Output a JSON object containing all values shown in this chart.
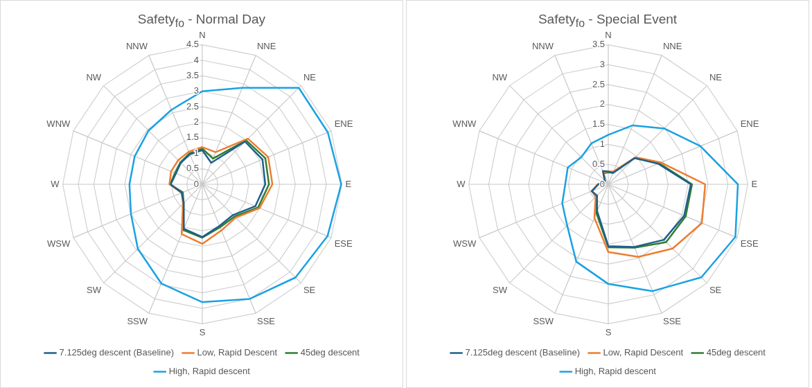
{
  "chart_data": [
    {
      "type": "radar",
      "title": "Safety$_{fo}$  - Normal Day",
      "categories": [
        "N",
        "NNE",
        "NE",
        "ENE",
        "E",
        "ESE",
        "SE",
        "SSE",
        "S",
        "SSW",
        "SW",
        "WSW",
        "W",
        "WNW",
        "NW",
        "NNW"
      ],
      "ylim": [
        0,
        4.5
      ],
      "yticks": [
        0,
        0.5,
        1,
        1.5,
        2,
        2.5,
        3,
        3.5,
        4,
        4.5
      ],
      "grid": true,
      "legend": "bottom",
      "marker": "none",
      "series": [
        {
          "name": "7.125deg descent (Baseline)",
          "color": "#1f5f8b",
          "values": [
            1.1,
            0.75,
            1.95,
            2.1,
            2.03,
            1.85,
            1.4,
            1.45,
            1.7,
            1.55,
            0.85,
            0.72,
            1.02,
            0.92,
            0.98,
            1.05
          ]
        },
        {
          "name": "Low, Rapid Descent",
          "color": "#ed7d31",
          "values": [
            1.2,
            1.12,
            2.08,
            2.3,
            2.26,
            2.0,
            1.52,
            1.61,
            1.92,
            1.74,
            0.88,
            0.72,
            1.06,
            1.09,
            1.1,
            1.14
          ]
        },
        {
          "name": "45deg descent",
          "color": "#2e7d32",
          "values": [
            1.15,
            0.9,
            2.0,
            2.2,
            2.15,
            1.95,
            1.47,
            1.5,
            1.72,
            1.6,
            0.85,
            0.68,
            1.04,
            0.95,
            1.0,
            1.08
          ]
        },
        {
          "name": "High, Rapid descent",
          "color": "#1ba1e2",
          "values": [
            3.0,
            3.37,
            4.4,
            4.38,
            4.48,
            4.37,
            4.25,
            4.0,
            3.8,
            3.46,
            2.94,
            2.49,
            2.35,
            2.36,
            2.45,
            2.6
          ]
        }
      ]
    },
    {
      "type": "radar",
      "title": "Safety$_{fo}$  - Special Event",
      "categories": [
        "N",
        "NNE",
        "NE",
        "ENE",
        "E",
        "ESE",
        "SE",
        "SSE",
        "S",
        "SSW",
        "SW",
        "WSW",
        "W",
        "WNW",
        "NW",
        "NNW"
      ],
      "ylim": [
        0,
        3.5
      ],
      "yticks": [
        0,
        0.5,
        1,
        1.5,
        2,
        2.5,
        3,
        3.5
      ],
      "grid": true,
      "legend": "bottom",
      "marker": "none",
      "series": [
        {
          "name": "7.125deg descent (Baseline)",
          "color": "#1f5f8b",
          "values": [
            0.32,
            0.31,
            0.93,
            1.35,
            2.07,
            2.06,
            1.97,
            1.7,
            1.55,
            0.73,
            0.4,
            0.45,
            0.25,
            0.12,
            0.12,
            0.36
          ]
        },
        {
          "name": "Low, Rapid Descent",
          "color": "#ed7d31",
          "values": [
            0.32,
            0.35,
            0.96,
            1.43,
            2.43,
            2.54,
            2.28,
            1.97,
            1.7,
            0.91,
            0.45,
            0.44,
            0.27,
            0.12,
            0.12,
            0.32
          ]
        },
        {
          "name": "45deg descent",
          "color": "#2e7d32",
          "values": [
            0.3,
            0.31,
            0.93,
            1.38,
            2.1,
            2.1,
            2.05,
            1.72,
            1.58,
            0.78,
            0.42,
            0.45,
            0.25,
            0.12,
            0.12,
            0.3
          ]
        },
        {
          "name": "High, Rapid descent",
          "color": "#1ba1e2",
          "values": [
            1.24,
            1.6,
            1.98,
            2.5,
            3.25,
            3.45,
            3.3,
            2.9,
            2.5,
            2.1,
            1.46,
            1.25,
            1.08,
            1.1,
            0.96,
            1.11
          ]
        }
      ]
    }
  ]
}
